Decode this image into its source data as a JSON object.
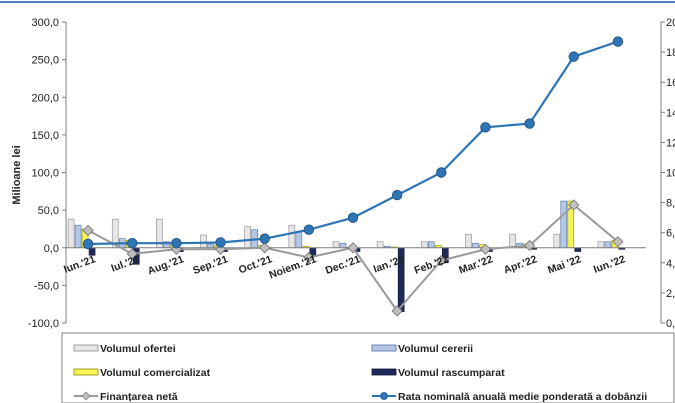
{
  "chart_data": {
    "type": "bar",
    "categories": [
      "Iun.'21",
      "Iul.'21",
      "Aug.'21",
      "Sep.'21",
      "Oct.'21",
      "Noiem.'21",
      "Dec.'21",
      "Ian.'22",
      "Feb.'22",
      "Mar.'22",
      "Apr.'22",
      "Mai '22",
      "Iun.'22"
    ],
    "ylabel": "Milioane lei",
    "ylim": [
      -100,
      300
    ],
    "y_ticks": [
      "300,0",
      "250,0",
      "200,0",
      "150,0",
      "100,0",
      "50,0",
      "0,0",
      "-50,0",
      "-100,0"
    ],
    "y2lim": [
      0,
      20
    ],
    "y2_ticks": [
      "20",
      "18",
      "16",
      "14",
      "12",
      "10",
      "8,",
      "6,",
      "4,",
      "2,",
      "0,"
    ],
    "grid": false,
    "legend_position": "bottom",
    "series": [
      {
        "name": "Volumul ofertei",
        "kind": "bar",
        "axis": "left",
        "color": "#e6e6e6",
        "stroke": "#8c8c8c",
        "values": [
          38,
          38,
          38,
          17,
          28,
          30,
          8,
          8,
          8,
          18,
          18,
          18,
          8
        ]
      },
      {
        "name": "Volumul cererii",
        "kind": "bar",
        "axis": "left",
        "color": "#b4c7e7",
        "stroke": "#4f6f9f",
        "values": [
          30,
          12,
          8,
          5,
          24,
          22,
          6,
          2,
          8,
          6,
          6,
          62,
          8
        ]
      },
      {
        "name": "Volumul comercializat",
        "kind": "bar",
        "axis": "left",
        "color": "#f4f45a",
        "stroke": "#8c8c00",
        "values": [
          25,
          10,
          3,
          3,
          3,
          2,
          1,
          1,
          3,
          4,
          5,
          62,
          10
        ]
      },
      {
        "name": "Volumul rascumparat",
        "kind": "bar",
        "axis": "left",
        "color": "#1f2a5c",
        "stroke": "#0f1530",
        "values": [
          -10,
          -22,
          -5,
          -5,
          -2,
          -10,
          -5,
          -85,
          -20,
          -5,
          -2,
          -5,
          -2
        ]
      },
      {
        "name": "Finanțarea netă",
        "kind": "line",
        "axis": "left",
        "color": "#9a9a9a",
        "marker": "diamond",
        "values": [
          23,
          -8,
          -2,
          -2,
          0,
          -13,
          0,
          -84,
          -17,
          -2,
          3,
          57,
          8
        ]
      },
      {
        "name": "Rata nominală anuală medie ponderată a dobânzii",
        "kind": "line",
        "axis": "right",
        "color": "#2e75b6",
        "marker": "circle",
        "values": [
          5.25,
          5.3,
          5.3,
          5.35,
          5.6,
          6.2,
          7.0,
          8.5,
          10.0,
          13.0,
          13.25,
          17.7,
          18.7
        ]
      }
    ]
  },
  "colors": {
    "frame": "#7f7f7f",
    "axis_line": "#7f7f7f",
    "diamond_fill": "#bfbfbf"
  }
}
